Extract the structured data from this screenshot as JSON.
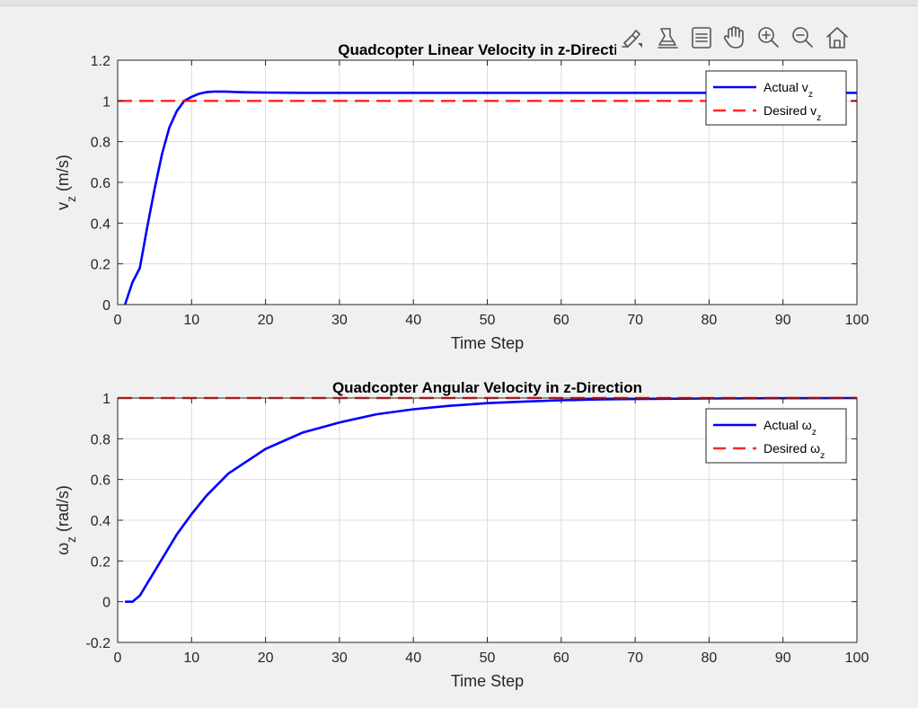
{
  "toolbar": {
    "icons": [
      "brush-icon",
      "data-tips-icon",
      "export-icon",
      "pan-icon",
      "zoom-in-icon",
      "zoom-out-icon",
      "restore-view-icon"
    ]
  },
  "chart_data": [
    {
      "type": "line",
      "title": "Quadcopter Linear Velocity in z-Direction",
      "xlabel": "Time Step",
      "ylabel": "v",
      "ylabel_sub": "z",
      "ylabel_suffix": " (m/s)",
      "xlim": [
        0,
        100
      ],
      "ylim": [
        0,
        1.2
      ],
      "xticks": [
        0,
        10,
        20,
        30,
        40,
        50,
        60,
        70,
        80,
        90,
        100
      ],
      "yticks": [
        0,
        0.2,
        0.4,
        0.6,
        0.8,
        1.0,
        1.2
      ],
      "ytick_labels": [
        "0",
        "0.2",
        "0.4",
        "0.6",
        "0.8",
        "1",
        "1.2"
      ],
      "grid": true,
      "legend_position": "top-right",
      "series": [
        {
          "name": "Actual v",
          "name_sub": "z",
          "color": "#0000ff",
          "dash": "solid",
          "x": [
            1,
            2,
            3,
            4,
            5,
            6,
            7,
            8,
            9,
            10,
            11,
            12,
            13,
            14,
            15,
            16,
            18,
            20,
            25,
            30,
            40,
            50,
            60,
            70,
            80,
            90,
            100
          ],
          "y": [
            0,
            0.11,
            0.18,
            0.38,
            0.57,
            0.74,
            0.87,
            0.95,
            1.0,
            1.02,
            1.035,
            1.043,
            1.046,
            1.046,
            1.045,
            1.044,
            1.042,
            1.041,
            1.04,
            1.04,
            1.04,
            1.04,
            1.04,
            1.04,
            1.04,
            1.04,
            1.04
          ]
        },
        {
          "name": "Desired v",
          "name_sub": "z",
          "color": "#ff0000",
          "dash": "dashed",
          "x": [
            0,
            100
          ],
          "y": [
            1,
            1
          ]
        }
      ]
    },
    {
      "type": "line",
      "title": "Quadcopter Angular Velocity in z-Direction",
      "xlabel": "Time Step",
      "ylabel": "ω",
      "ylabel_sub": "z",
      "ylabel_suffix": " (rad/s)",
      "xlim": [
        0,
        100
      ],
      "ylim": [
        -0.2,
        1.0
      ],
      "xticks": [
        0,
        10,
        20,
        30,
        40,
        50,
        60,
        70,
        80,
        90,
        100
      ],
      "yticks": [
        -0.2,
        0,
        0.2,
        0.4,
        0.6,
        0.8,
        1.0
      ],
      "ytick_labels": [
        "-0.2",
        "0",
        "0.2",
        "0.4",
        "0.6",
        "0.8",
        "1"
      ],
      "grid": true,
      "legend_position": "top-right",
      "series": [
        {
          "name": "Actual ω",
          "name_sub": "z",
          "color": "#0000ff",
          "dash": "solid",
          "x": [
            1,
            2,
            3,
            4,
            5,
            6,
            8,
            10,
            12,
            15,
            20,
            25,
            30,
            35,
            40,
            45,
            50,
            55,
            60,
            65,
            70,
            80,
            90,
            100
          ],
          "y": [
            0,
            0,
            0.03,
            0.09,
            0.15,
            0.21,
            0.33,
            0.43,
            0.52,
            0.63,
            0.75,
            0.83,
            0.88,
            0.92,
            0.945,
            0.962,
            0.975,
            0.983,
            0.989,
            0.993,
            0.995,
            0.998,
            0.999,
            1.0
          ]
        },
        {
          "name": "Desired ω",
          "name_sub": "z",
          "color": "#ff0000",
          "dash": "dashed",
          "x": [
            0,
            100
          ],
          "y": [
            1,
            1
          ]
        }
      ]
    }
  ]
}
